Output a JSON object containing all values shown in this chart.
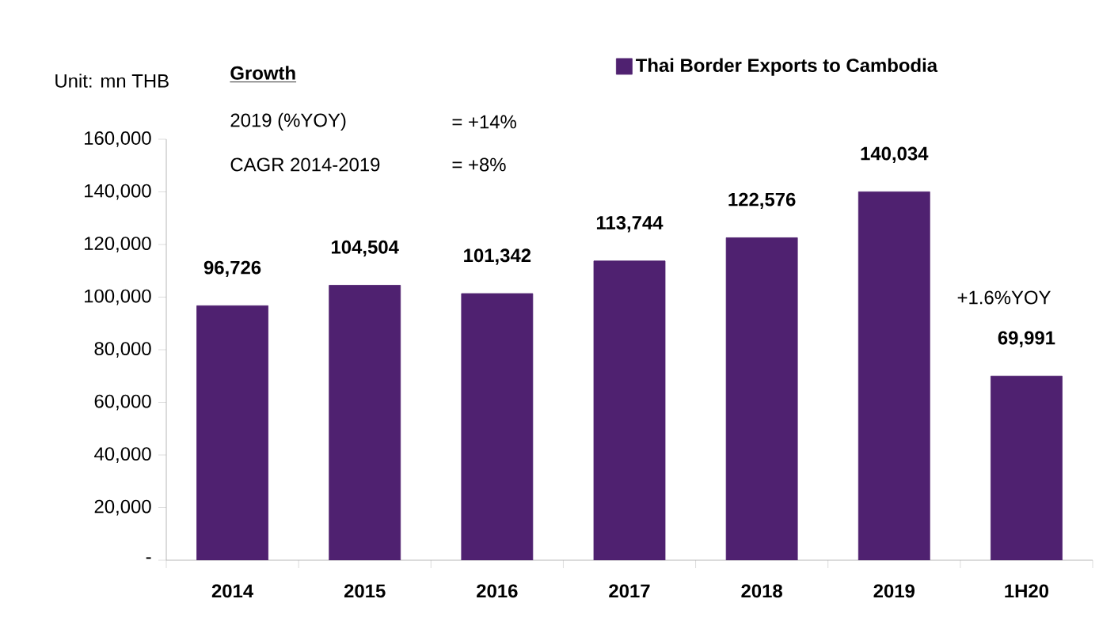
{
  "chart_data": {
    "type": "bar",
    "categories": [
      "2014",
      "2015",
      "2016",
      "2017",
      "2018",
      "2019",
      "1H20"
    ],
    "series": [
      {
        "name": "Thai Border Exports to Cambodia",
        "color": "#4f2170",
        "values": [
          96726,
          104504,
          101342,
          113744,
          122576,
          140034,
          69991
        ]
      }
    ],
    "value_labels": [
      "96,726",
      "104,504",
      "101,342",
      "113,744",
      "122,576",
      "140,034",
      "69,991"
    ],
    "ylim": [
      0,
      160000
    ],
    "yticks": [
      {
        "value": 0,
        "label": "-"
      },
      {
        "value": 20000,
        "label": "20,000"
      },
      {
        "value": 40000,
        "label": "40,000"
      },
      {
        "value": 60000,
        "label": "60,000"
      },
      {
        "value": 80000,
        "label": "80,000"
      },
      {
        "value": 100000,
        "label": "100,000"
      },
      {
        "value": 120000,
        "label": "120,000"
      },
      {
        "value": 140000,
        "label": "140,000"
      },
      {
        "value": 160000,
        "label": "160,000"
      }
    ],
    "annotations": [
      "Unit: mn THB",
      "Growth",
      "2019 (%YOY)",
      "= +14%",
      "CAGR 2014-2019",
      "= +8%",
      "+1.6%YOY"
    ],
    "legend": "top",
    "grid": false
  }
}
